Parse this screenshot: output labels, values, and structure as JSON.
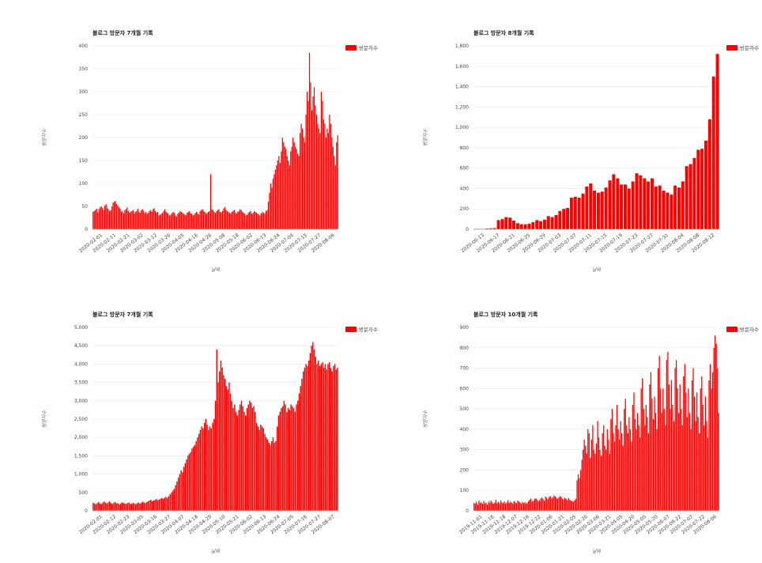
{
  "colors": {
    "series": "#ff0000",
    "grid": "#e6e6e6",
    "text": "#444444"
  },
  "chart_data": [
    {
      "type": "bar",
      "title": "블로그 방문자 7개월 기록",
      "xlabel": "날짜",
      "ylabel": "방문자수",
      "legend": "top-right",
      "series_name": "방문자수",
      "ylim": [
        0,
        400
      ],
      "yticks": [
        0,
        50,
        100,
        150,
        200,
        250,
        300,
        350,
        400
      ],
      "ytick_labels": [
        "0",
        "50",
        "100",
        "150",
        "200",
        "250",
        "300",
        "350",
        "400"
      ],
      "xtick_labels": [
        "2020-02-01",
        "2020-02-11",
        "2020-02-21",
        "2020-03-02",
        "2020-03-12",
        "2020-03-26",
        "2020-04-05",
        "2020-04-16",
        "2020-04-26",
        "2020-05-08",
        "2020-05-18",
        "2020-06-02",
        "2020-06-13",
        "2020-06-24",
        "2020-07-04",
        "2020-07-15",
        "2020-07-27",
        "2020-08-06"
      ],
      "values": [
        38,
        40,
        42,
        45,
        36,
        44,
        48,
        50,
        47,
        42,
        52,
        55,
        46,
        44,
        40,
        42,
        50,
        58,
        60,
        62,
        55,
        52,
        48,
        45,
        38,
        40,
        35,
        42,
        44,
        48,
        40,
        36,
        38,
        40,
        42,
        34,
        38,
        40,
        45,
        38,
        36,
        42,
        44,
        40,
        35,
        38,
        34,
        36,
        40,
        42,
        38,
        44,
        46,
        40,
        36,
        38,
        30,
        32,
        34,
        36,
        40,
        44,
        38,
        36,
        34,
        30,
        32,
        35,
        38,
        36,
        30,
        28,
        34,
        36,
        40,
        38,
        36,
        34,
        32,
        30,
        36,
        38,
        40,
        35,
        34,
        30,
        32,
        36,
        38,
        34,
        32,
        40,
        42,
        44,
        40,
        38,
        34,
        36,
        38,
        40,
        120,
        44,
        42,
        38,
        36,
        40,
        42,
        44,
        38,
        36,
        40,
        45,
        48,
        42,
        40,
        38,
        36,
        34,
        38,
        40,
        42,
        36,
        34,
        38,
        40,
        44,
        42,
        38,
        36,
        34,
        30,
        32,
        36,
        38,
        40,
        34,
        36,
        40,
        38,
        36,
        34,
        32,
        30,
        35,
        38,
        36,
        34,
        40,
        42,
        60,
        80,
        100,
        90,
        110,
        120,
        130,
        140,
        150,
        160,
        145,
        170,
        200,
        190,
        180,
        175,
        160,
        150,
        140,
        170,
        180,
        200,
        190,
        180,
        175,
        165,
        160,
        210,
        230,
        220,
        200,
        190,
        250,
        300,
        280,
        385,
        320,
        260,
        290,
        310,
        270,
        250,
        230,
        220,
        210,
        300,
        280,
        240,
        230,
        200,
        220,
        210,
        250,
        230,
        200,
        180,
        160,
        140,
        190,
        205
      ]
    },
    {
      "type": "bar",
      "title": "블로그 방문자 8개월 기록",
      "xlabel": "날짜",
      "ylabel": "방문자수",
      "legend": "top-right",
      "series_name": "방문자수",
      "ylim": [
        0,
        1800
      ],
      "yticks": [
        0,
        200,
        400,
        600,
        800,
        1000,
        1200,
        1400,
        1600,
        1800
      ],
      "ytick_labels": [
        "0",
        "200",
        "400",
        "600",
        "800",
        "1,000",
        "1,200",
        "1,400",
        "1,600",
        "1,800"
      ],
      "xtick_labels": [
        "2020-06-13",
        "2020-06-17",
        "2020-06-21",
        "2020-06-25",
        "2020-06-29",
        "2020-07-03",
        "2020-07-07",
        "2020-07-11",
        "2020-07-15",
        "2020-07-19",
        "2020-07-23",
        "2020-07-27",
        "2020-07-31",
        "2020-08-04",
        "2020-08-08",
        "2020-08-12"
      ],
      "values": [
        5,
        5,
        5,
        8,
        10,
        12,
        90,
        100,
        120,
        115,
        85,
        60,
        50,
        50,
        55,
        70,
        90,
        80,
        95,
        130,
        120,
        140,
        180,
        200,
        210,
        310,
        320,
        310,
        350,
        420,
        450,
        380,
        360,
        370,
        410,
        480,
        540,
        500,
        440,
        440,
        400,
        470,
        550,
        530,
        500,
        470,
        500,
        420,
        430,
        380,
        360,
        340,
        430,
        410,
        470,
        620,
        640,
        700,
        780,
        790,
        870,
        1080,
        1500,
        1720
      ]
    },
    {
      "type": "bar",
      "title": "블로그 방문자 7개월 기록",
      "xlabel": "날짜",
      "ylabel": "방문자수",
      "legend": "top-right",
      "series_name": "방문자수",
      "ylim": [
        0,
        5000
      ],
      "yticks": [
        0,
        500,
        1000,
        1500,
        2000,
        2500,
        3000,
        3500,
        4000,
        4500,
        5000
      ],
      "ytick_labels": [
        "0",
        "500",
        "1,000",
        "1,500",
        "2,000",
        "2,500",
        "3,000",
        "3,500",
        "4,000",
        "4,500",
        "5,000"
      ],
      "xtick_labels": [
        "2020-02-01",
        "2020-02-12",
        "2020-02-23",
        "2020-03-05",
        "2020-03-16",
        "2020-03-27",
        "2020-04-07",
        "2020-04-18",
        "2020-04-29",
        "2020-05-10",
        "2020-05-21",
        "2020-06-02",
        "2020-06-13",
        "2020-06-24",
        "2020-07-05",
        "2020-07-16",
        "2020-07-27",
        "2020-08-07"
      ],
      "values": [
        220,
        200,
        180,
        210,
        240,
        200,
        190,
        230,
        250,
        220,
        200,
        230,
        260,
        210,
        190,
        220,
        240,
        200,
        210,
        180,
        200,
        230,
        220,
        200,
        190,
        210,
        230,
        200,
        190,
        220,
        200,
        180,
        210,
        230,
        200,
        220,
        250,
        230,
        210,
        240,
        260,
        280,
        300,
        260,
        280,
        300,
        320,
        290,
        310,
        330,
        350,
        330,
        360,
        380,
        350,
        400,
        450,
        500,
        550,
        600,
        700,
        800,
        900,
        1000,
        1100,
        1050,
        1200,
        1300,
        1400,
        1500,
        1550,
        1600,
        1700,
        1750,
        1800,
        1900,
        2000,
        2100,
        2200,
        2300,
        2250,
        2400,
        2500,
        2350,
        2200,
        2300,
        2250,
        2400,
        2500,
        3000,
        4400,
        3500,
        3800,
        4100,
        3900,
        3700,
        3600,
        3400,
        3300,
        3500,
        3200,
        3000,
        2800,
        2900,
        2700,
        2600,
        2750,
        2900,
        3000,
        2850,
        2700,
        2600,
        2800,
        2900,
        3000,
        2950,
        2800,
        2850,
        2700,
        2400,
        2300,
        2200,
        2350,
        2300,
        2250,
        2100,
        2000,
        1950,
        1850,
        1800,
        1900,
        2000,
        1850,
        1900,
        2300,
        2600,
        2700,
        2800,
        2850,
        3000,
        2900,
        2700,
        2800,
        2750,
        2900,
        2850,
        2800,
        2700,
        2900,
        3000,
        3200,
        3400,
        3600,
        3800,
        3900,
        4000,
        3950,
        4100,
        4300,
        4500,
        4600,
        4400,
        4200,
        4000,
        4100,
        3950,
        4000,
        4050,
        3900,
        4000,
        3850,
        4000,
        4050,
        3900,
        3800,
        3950,
        4000,
        3850,
        3900
      ]
    },
    {
      "type": "bar",
      "title": "블로그 방문자 10개월 기록",
      "xlabel": "날짜",
      "ylabel": "방문자수",
      "legend": "top-right",
      "series_name": "방문자수",
      "ylim": [
        0,
        900
      ],
      "yticks": [
        0,
        100,
        200,
        300,
        400,
        500,
        600,
        700,
        800,
        900
      ],
      "ytick_labels": [
        "0",
        "100",
        "200",
        "300",
        "400",
        "500",
        "600",
        "700",
        "800",
        "900"
      ],
      "xtick_labels": [
        "2019-11-01",
        "2019-11-16",
        "2019-11-18",
        "2019-12-07",
        "2019-12-16",
        "2019-12-22",
        "2020-01-06",
        "2020-01-21",
        "2020-02-05",
        "2020-02-20",
        "2020-03-06",
        "2020-03-21",
        "2020-04-05",
        "2020-04-20",
        "2020-05-05",
        "2020-05-20",
        "2020-06-07",
        "2020-06-22",
        "2020-07-07",
        "2020-07-22",
        "2020-08-06"
      ],
      "values": [
        40,
        35,
        45,
        30,
        50,
        38,
        42,
        35,
        48,
        36,
        40,
        30,
        45,
        38,
        50,
        42,
        35,
        40,
        55,
        38,
        44,
        36,
        50,
        42,
        38,
        46,
        35,
        40,
        52,
        38,
        45,
        40,
        36,
        48,
        42,
        38,
        50,
        45,
        40,
        35,
        44,
        38,
        42,
        36,
        40,
        48,
        55,
        60,
        45,
        50,
        58,
        62,
        55,
        48,
        52,
        60,
        65,
        58,
        50,
        70,
        62,
        55,
        68,
        72,
        60,
        65,
        75,
        70,
        62,
        58,
        66,
        72,
        68,
        60,
        55,
        64,
        58,
        52,
        62,
        55,
        50,
        48,
        45,
        52,
        60,
        150,
        180,
        160,
        200,
        250,
        300,
        350,
        320,
        280,
        400,
        380,
        260,
        350,
        420,
        300,
        280,
        330,
        440,
        360,
        300,
        270,
        380,
        420,
        320,
        300,
        400,
        350,
        280,
        450,
        500,
        380,
        340,
        420,
        520,
        400,
        350,
        440,
        380,
        320,
        500,
        550,
        420,
        380,
        460,
        400,
        340,
        520,
        580,
        450,
        400,
        480,
        420,
        360,
        600,
        650,
        500,
        420,
        520,
        460,
        380,
        620,
        680,
        550,
        450,
        560,
        480,
        400,
        700,
        760,
        600,
        480,
        600,
        500,
        420,
        740,
        780,
        620,
        500,
        640,
        520,
        440,
        700,
        740,
        600,
        480,
        620,
        500,
        420,
        660,
        720,
        580,
        460,
        600,
        480,
        400,
        640,
        700,
        560,
        440,
        580,
        460,
        380,
        600,
        660,
        520,
        420,
        560,
        440,
        360,
        640,
        720,
        600,
        680,
        800,
        860,
        820,
        700,
        480
      ]
    }
  ]
}
